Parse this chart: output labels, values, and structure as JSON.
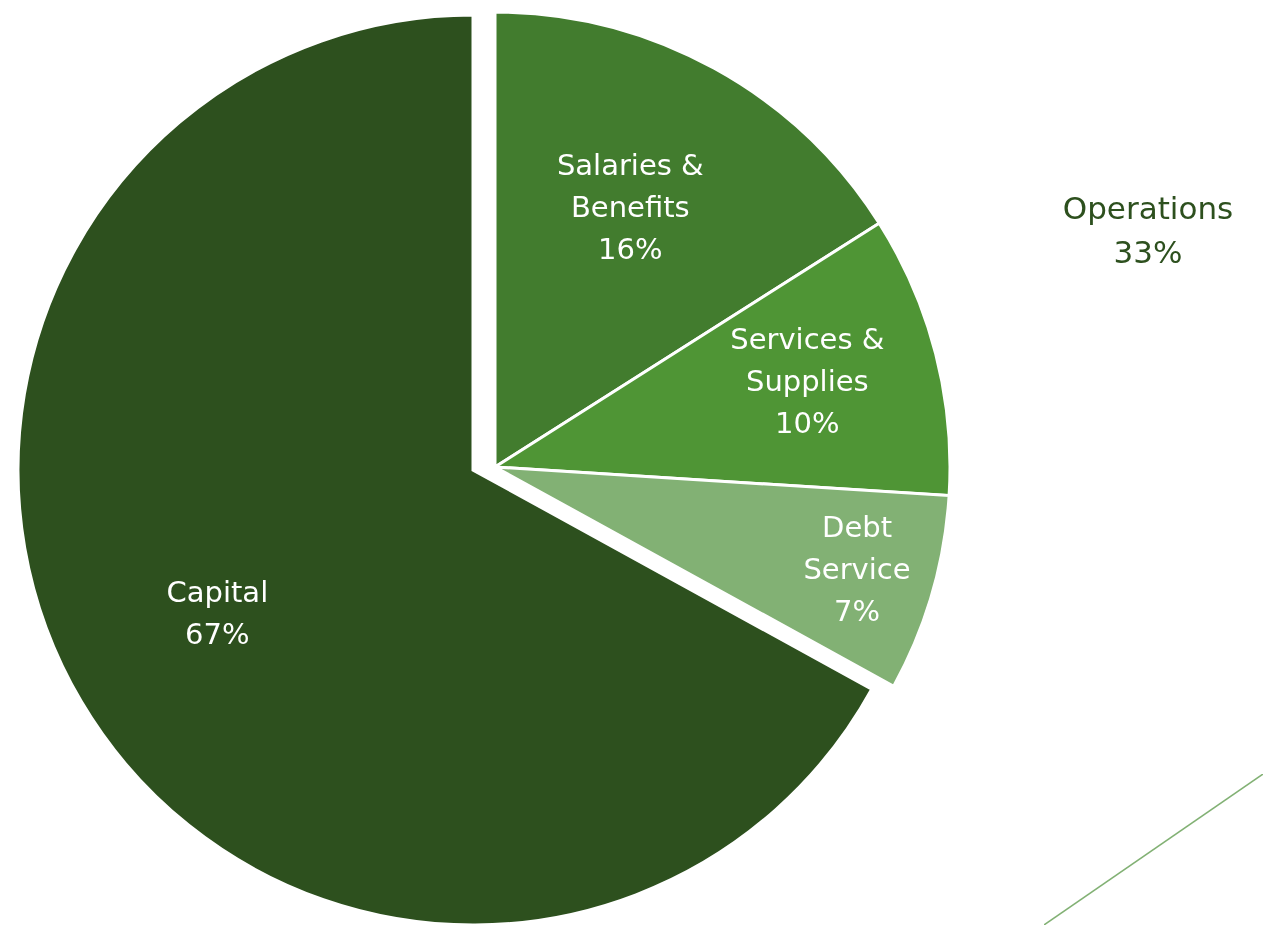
{
  "chart_data": {
    "type": "pie",
    "categories": [
      "Salaries & Benefits",
      "Services & Supplies",
      "Debt Service",
      "Capital"
    ],
    "values": [
      16,
      10,
      7,
      67
    ],
    "colors": [
      "#427c2e",
      "#4f9535",
      "#82b174",
      "#2d501e"
    ],
    "value_labels": [
      "16%",
      "10%",
      "7%",
      "67%"
    ],
    "annotations": [
      "Operations 33%"
    ]
  }
}
